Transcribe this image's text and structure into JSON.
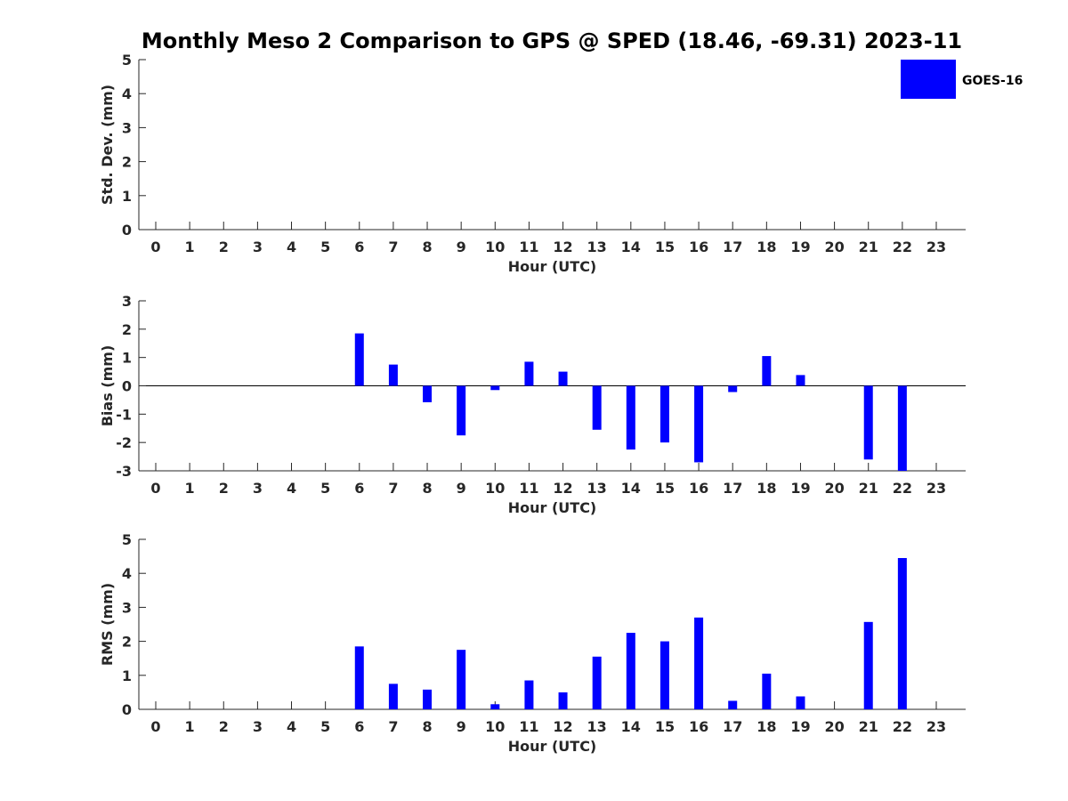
{
  "title": "Monthly Meso 2 Comparison to GPS @ SPED (18.46, -69.31) 2023-11",
  "legend": {
    "label": "GOES-16",
    "color": "#0000ff",
    "placement": "top-right"
  },
  "chart_data": [
    {
      "type": "bar",
      "ylabel": "Std. Dev. (mm)",
      "xlabel": "Hour (UTC)",
      "ylim": [
        0,
        5
      ],
      "yticks": [
        "0",
        "1",
        "2",
        "3",
        "4",
        "5"
      ],
      "categories": [
        "0",
        "1",
        "2",
        "3",
        "4",
        "5",
        "6",
        "7",
        "8",
        "9",
        "10",
        "11",
        "12",
        "13",
        "14",
        "15",
        "16",
        "17",
        "18",
        "19",
        "20",
        "21",
        "22",
        "23"
      ],
      "series": [
        {
          "name": "GOES-16",
          "color": "#0000ff",
          "values": [
            null,
            null,
            null,
            null,
            null,
            null,
            null,
            null,
            null,
            null,
            null,
            null,
            null,
            null,
            null,
            null,
            null,
            null,
            null,
            null,
            null,
            null,
            null,
            null
          ]
        }
      ]
    },
    {
      "type": "bar",
      "ylabel": "Bias (mm)",
      "xlabel": "Hour (UTC)",
      "ylim": [
        -3,
        3
      ],
      "yticks": [
        "-3",
        "-2",
        "-1",
        "0",
        "1",
        "2",
        "3"
      ],
      "categories": [
        "0",
        "1",
        "2",
        "3",
        "4",
        "5",
        "6",
        "7",
        "8",
        "9",
        "10",
        "11",
        "12",
        "13",
        "14",
        "15",
        "16",
        "17",
        "18",
        "19",
        "20",
        "21",
        "22",
        "23"
      ],
      "series": [
        {
          "name": "GOES-16",
          "color": "#0000ff",
          "values": [
            null,
            null,
            null,
            null,
            null,
            null,
            1.85,
            0.75,
            -0.58,
            -1.75,
            -0.15,
            0.85,
            0.5,
            -1.55,
            -2.25,
            -2.0,
            -2.7,
            -0.22,
            1.05,
            0.38,
            null,
            -2.6,
            -3.0,
            null
          ]
        }
      ]
    },
    {
      "type": "bar",
      "ylabel": "RMS (mm)",
      "xlabel": "Hour (UTC)",
      "ylim": [
        0,
        5
      ],
      "yticks": [
        "0",
        "1",
        "2",
        "3",
        "4",
        "5"
      ],
      "categories": [
        "0",
        "1",
        "2",
        "3",
        "4",
        "5",
        "6",
        "7",
        "8",
        "9",
        "10",
        "11",
        "12",
        "13",
        "14",
        "15",
        "16",
        "17",
        "18",
        "19",
        "20",
        "21",
        "22",
        "23"
      ],
      "series": [
        {
          "name": "GOES-16",
          "color": "#0000ff",
          "values": [
            null,
            null,
            null,
            null,
            null,
            null,
            1.85,
            0.75,
            0.58,
            1.75,
            0.15,
            0.85,
            0.5,
            1.55,
            2.25,
            2.0,
            2.7,
            0.25,
            1.05,
            0.38,
            null,
            2.57,
            4.45,
            null
          ]
        }
      ]
    }
  ]
}
